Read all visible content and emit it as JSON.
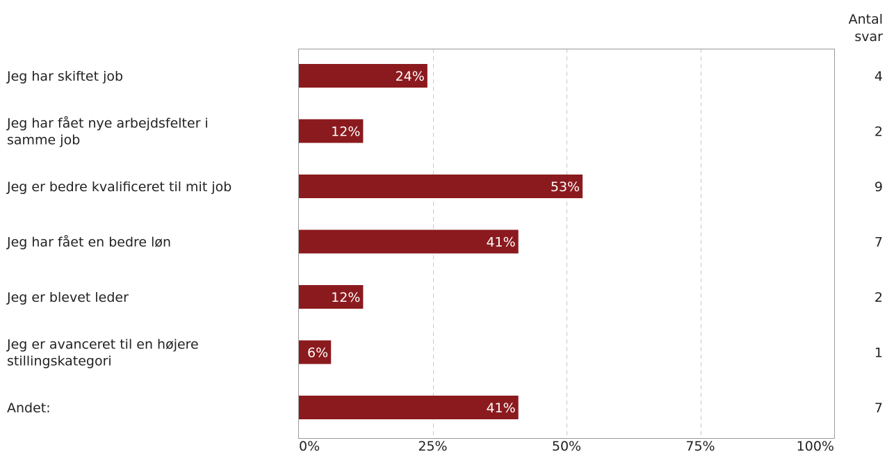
{
  "chart_data": {
    "type": "bar",
    "orientation": "horizontal",
    "categories": [
      [
        "Jeg har skiftet job"
      ],
      [
        "Jeg har fået nye arbejdsfelter i",
        "samme job"
      ],
      [
        "Jeg er bedre kvalificeret til mit job"
      ],
      [
        "Jeg har fået en bedre løn"
      ],
      [
        "Jeg er blevet leder"
      ],
      [
        "Jeg er avanceret til en højere",
        "stillingskategori"
      ],
      [
        "Andet:"
      ]
    ],
    "values": [
      24,
      12,
      53,
      41,
      12,
      6,
      41
    ],
    "value_labels": [
      "24%",
      "12%",
      "53%",
      "41%",
      "12%",
      "6%",
      "41%"
    ],
    "counts": [
      "4",
      "2",
      "9",
      "7",
      "2",
      "1",
      "7"
    ],
    "count_header": [
      "Antal",
      "svar"
    ],
    "x_ticks": [
      0,
      25,
      50,
      75,
      100
    ],
    "x_tick_labels": [
      "0%",
      "25%",
      "50%",
      "75%",
      "100%"
    ],
    "xlim": [
      0,
      100
    ],
    "grid": "vertical dashed",
    "bar_color": "#8b1a1e",
    "value_label_color": "#ffffff",
    "title": "",
    "xlabel": "",
    "ylabel": ""
  }
}
